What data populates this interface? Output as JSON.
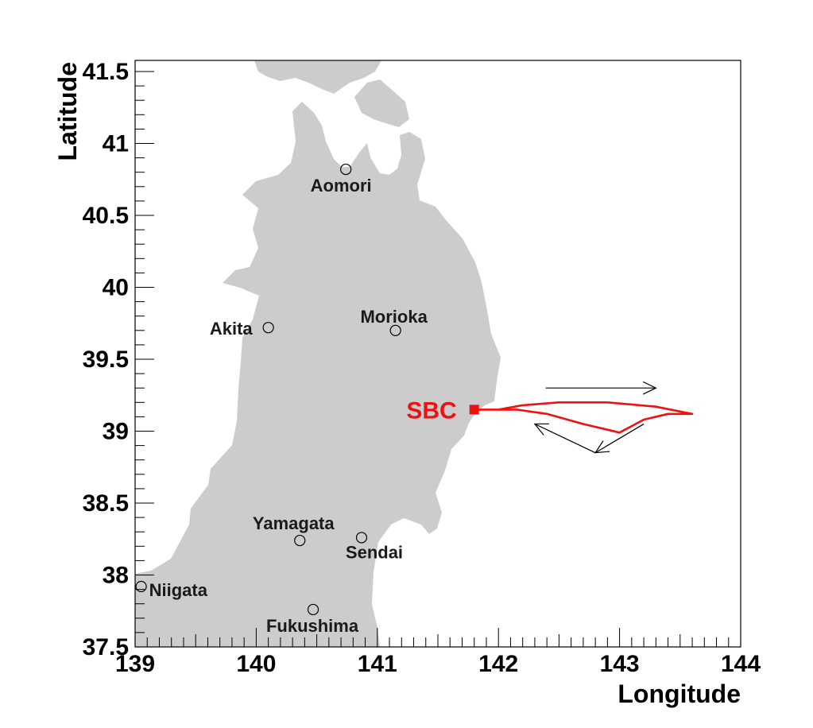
{
  "axes": {
    "x_title": "Longitude",
    "y_title": "Latitude",
    "x_ticks": [
      "139",
      "140",
      "141",
      "142",
      "143",
      "144"
    ],
    "y_ticks": [
      "37.5",
      "38",
      "38.5",
      "39",
      "39.5",
      "40",
      "40.5",
      "41",
      "41.5"
    ]
  },
  "cities": [
    {
      "name": "Aomori",
      "lon": 140.74,
      "lat": 40.82
    },
    {
      "name": "Akita",
      "lon": 140.1,
      "lat": 39.72
    },
    {
      "name": "Morioka",
      "lon": 141.15,
      "lat": 39.7
    },
    {
      "name": "Yamagata",
      "lon": 140.36,
      "lat": 38.24
    },
    {
      "name": "Sendai",
      "lon": 140.87,
      "lat": 38.26
    },
    {
      "name": "Niigata",
      "lon": 139.05,
      "lat": 37.92
    },
    {
      "name": "Fukushima",
      "lon": 140.47,
      "lat": 37.76
    }
  ],
  "station": {
    "label": "SBC",
    "lon": 141.8,
    "lat": 39.15
  },
  "colors": {
    "land": "#cccccc",
    "track": "#ee1111",
    "station": "#ee1111",
    "frame": "#000000"
  },
  "chart_data": {
    "type": "map",
    "xlabel": "Longitude",
    "ylabel": "Latitude",
    "xlim": [
      139,
      144.05
    ],
    "ylim": [
      37.5,
      41.6
    ],
    "track": [
      [
        141.8,
        39.15
      ],
      [
        142.0,
        39.15
      ],
      [
        142.2,
        39.18
      ],
      [
        142.5,
        39.2
      ],
      [
        142.9,
        39.2
      ],
      [
        143.3,
        39.17
      ],
      [
        143.6,
        39.12
      ],
      [
        143.4,
        39.12
      ],
      [
        143.2,
        39.08
      ],
      [
        143.0,
        38.99
      ],
      [
        142.7,
        39.05
      ],
      [
        142.4,
        39.12
      ],
      [
        142.15,
        39.15
      ],
      [
        141.9,
        39.15
      ],
      [
        141.8,
        39.15
      ]
    ],
    "arrows": [
      {
        "from": [
          142.39,
          39.3
        ],
        "to": [
          143.3,
          39.3
        ]
      },
      {
        "from": [
          142.8,
          38.85
        ],
        "to": [
          142.3,
          39.05
        ]
      },
      {
        "from": [
          143.2,
          39.05
        ],
        "to": [
          142.8,
          38.85
        ]
      }
    ]
  }
}
